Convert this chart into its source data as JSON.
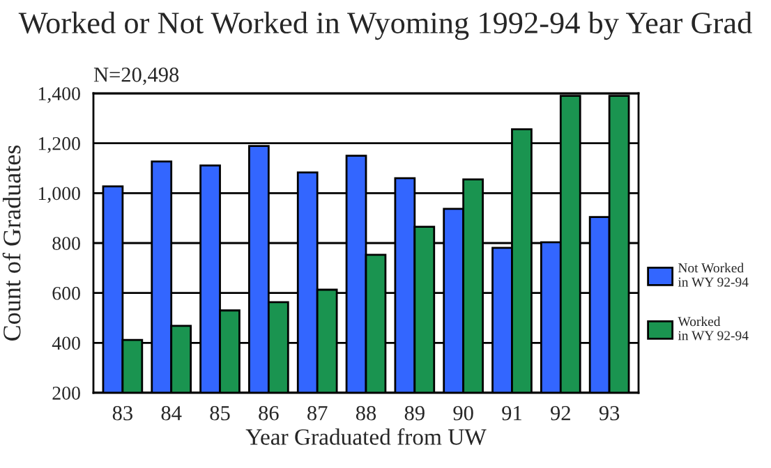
{
  "chart_data": {
    "type": "bar",
    "title": "Worked or Not Worked in Wyoming 1992-94 by Year Grad",
    "xlabel": "Year Graduated from UW",
    "ylabel": "Count of Graduates",
    "annotations": [
      "N=20,498"
    ],
    "categories": [
      "83",
      "84",
      "85",
      "86",
      "87",
      "88",
      "89",
      "90",
      "91",
      "92",
      "93"
    ],
    "series": [
      {
        "name": "Not Worked\nin WY 92-94",
        "color": "#3366ff",
        "values": [
          1027,
          1127,
          1111,
          1189,
          1083,
          1150,
          1060,
          937,
          781,
          803,
          904
        ]
      },
      {
        "name": "Worked\nin WY 92-94",
        "color": "#1a9450",
        "values": [
          412,
          468,
          530,
          563,
          613,
          753,
          865,
          1055,
          1256,
          1390,
          1390
        ]
      }
    ],
    "ylim": [
      200,
      1400
    ],
    "yticks": [
      {
        "value": 200,
        "label": "200"
      },
      {
        "value": 400,
        "label": "400"
      },
      {
        "value": 600,
        "label": "600"
      },
      {
        "value": 800,
        "label": "800"
      },
      {
        "value": 1000,
        "label": "1,000"
      },
      {
        "value": 1200,
        "label": "1,200"
      },
      {
        "value": 1400,
        "label": "1,400"
      }
    ],
    "grid": "y",
    "legend": "right"
  }
}
